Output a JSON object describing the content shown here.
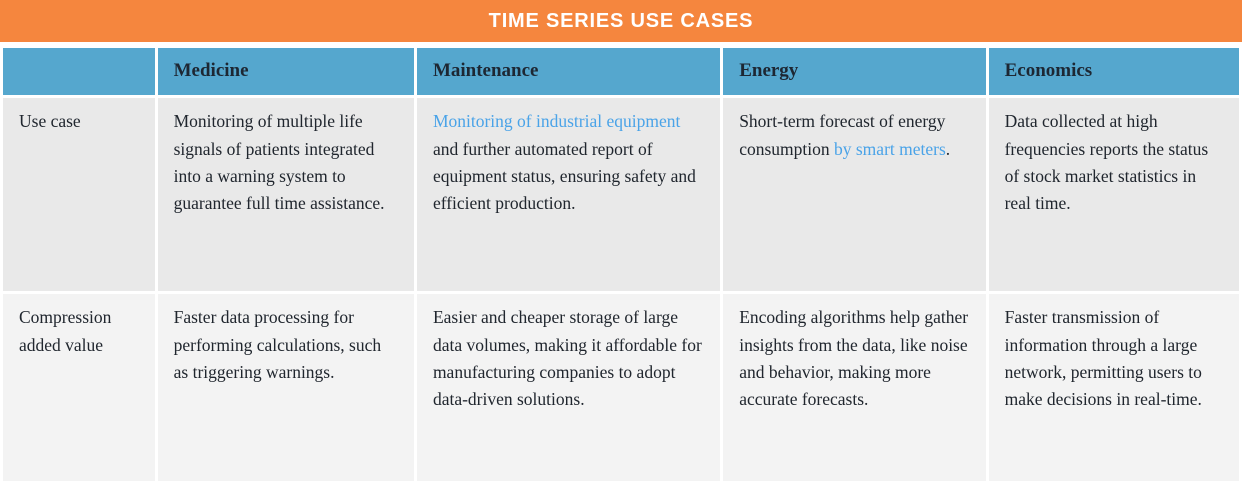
{
  "title": "TIME SERIES USE CASES",
  "colors": {
    "banner_orange": "#f5863e",
    "header_blue": "#55a7ce",
    "link_blue": "#4aa3e8",
    "text_dark": "#20262e",
    "row_use_case_bg": "#e9e9e9",
    "row_compression_bg": "#f3f3f3"
  },
  "table": {
    "columns": [
      "",
      "Medicine",
      "Maintenance",
      "Energy",
      "Economics"
    ],
    "rows": [
      {
        "label": "Use case",
        "cells": [
          [
            {
              "text": "Monitoring of multiple life signals of patients integrated into a warning system to guarantee full time assistance.",
              "link": false
            }
          ],
          [
            {
              "text": "Monitoring of industrial equipment",
              "link": true
            },
            {
              "text": " and further automated report of equipment status, ensuring safety and efficient production.",
              "link": false
            }
          ],
          [
            {
              "text": "Short-term forecast of energy consumption ",
              "link": false
            },
            {
              "text": "by smart meters",
              "link": true
            },
            {
              "text": ".",
              "link": false
            }
          ],
          [
            {
              "text": "Data collected at high frequencies reports the status of stock market statistics in real time.",
              "link": false
            }
          ]
        ]
      },
      {
        "label": "Compression added value",
        "cells": [
          [
            {
              "text": "Faster data processing for performing calculations, such as triggering warnings.",
              "link": false
            }
          ],
          [
            {
              "text": "Easier and cheaper storage of large data volumes, making it affordable for manufacturing companies to adopt data-driven solutions.",
              "link": false
            }
          ],
          [
            {
              "text": "Encoding algorithms help gather insights from the data, like noise and behavior, making more accurate forecasts.",
              "link": false
            }
          ],
          [
            {
              "text": "Faster transmission of information through a large network, permitting users to make decisions in real-time.",
              "link": false
            }
          ]
        ]
      }
    ]
  }
}
